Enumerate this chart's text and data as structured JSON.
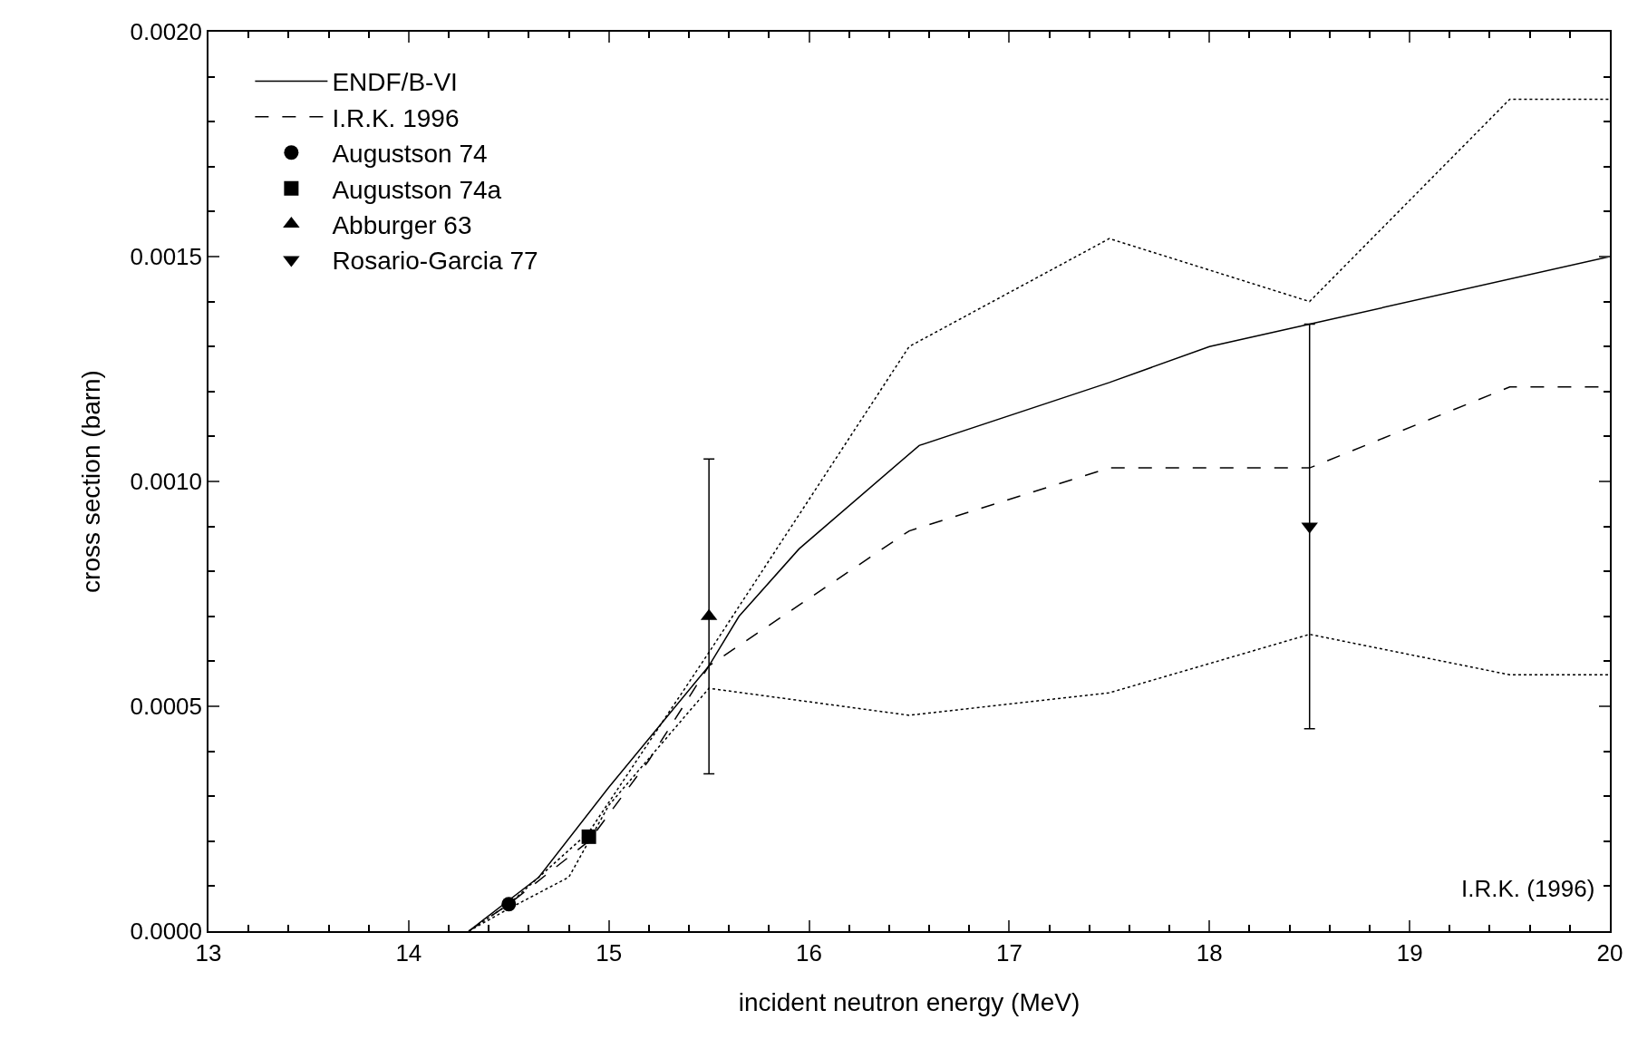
{
  "chart_data": {
    "type": "line",
    "xlabel": "incident neutron energy (MeV)",
    "ylabel": "cross section (barn)",
    "xlim": [
      13,
      20
    ],
    "xticks": [
      13,
      14,
      15,
      16,
      17,
      18,
      19,
      20
    ],
    "ylim": [
      0,
      0.002
    ],
    "yticks": [
      {
        "value": 0,
        "label": "0.0000"
      },
      {
        "value": 0.0005,
        "label": "0.0005"
      },
      {
        "value": 0.001,
        "label": "0.0010"
      },
      {
        "value": 0.0015,
        "label": "0.0015"
      },
      {
        "value": 0.002,
        "label": "0.0020"
      }
    ],
    "grid": false,
    "legend": "top left",
    "annotations": [
      "I.R.K. (1996)"
    ],
    "series": [
      {
        "name": "ENDF/B-VI",
        "line_style": "solid",
        "marker": "none",
        "color": "#000000",
        "x": [
          14.3,
          14.65,
          15.0,
          15.5,
          15.65,
          15.95,
          16.55,
          17.5,
          18.0,
          18.5,
          20
        ],
        "values": [
          0,
          0.00012,
          0.00032,
          0.00059,
          0.0007,
          0.00085,
          0.00108,
          0.00122,
          0.0013,
          0.00135,
          0.0015
        ]
      },
      {
        "name": "I.R.K. 1996",
        "line_style": "dashed",
        "marker": "none",
        "color": "#000000",
        "x": [
          14.3,
          14.5,
          14.9,
          15.2,
          15.5,
          16.5,
          17.5,
          18.5,
          19.5,
          20
        ],
        "values": [
          0,
          6e-05,
          0.0002,
          0.00038,
          0.00059,
          0.00089,
          0.00103,
          0.00103,
          0.00121,
          0.00121
        ]
      },
      {
        "line_style": "dotted",
        "marker": "none",
        "color": "#000000",
        "x": [
          14.3,
          14.5,
          14.9,
          15.5,
          16.5,
          17.5,
          18.5,
          19.5,
          20
        ],
        "values": [
          0,
          6e-05,
          0.00022,
          0.00062,
          0.0013,
          0.00154,
          0.0014,
          0.00185,
          0.00185
        ]
      },
      {
        "line_style": "dotted",
        "marker": "none",
        "color": "#000000",
        "x": [
          14.3,
          14.5,
          14.8,
          15.0,
          15.5,
          16.5,
          17.5,
          18.5,
          19.5,
          20
        ],
        "values": [
          0,
          5e-05,
          0.00012,
          0.00028,
          0.00054,
          0.00048,
          0.00053,
          0.00066,
          0.00057,
          0.00057
        ]
      },
      {
        "name": "Augustson 74",
        "type": "scatter",
        "marker": "circle",
        "color": "#000000",
        "x": [
          14.5
        ],
        "values": [
          6e-05
        ]
      },
      {
        "name": "Augustson 74a",
        "type": "scatter",
        "marker": "square",
        "color": "#000000",
        "x": [
          14.9
        ],
        "values": [
          0.00021
        ]
      },
      {
        "name": "Abburger 63",
        "type": "scatter",
        "marker": "triangle",
        "color": "#000000",
        "x": [
          15.5
        ],
        "values": [
          0.0007
        ],
        "errors": [
          [
            0.00035,
            0.00105
          ]
        ]
      },
      {
        "name": "Rosario-Garcia 77",
        "type": "scatter",
        "marker": "triangle-down",
        "color": "#000000",
        "x": [
          18.5
        ],
        "values": [
          0.0009
        ],
        "errors": [
          [
            0.00045,
            0.00135
          ]
        ]
      }
    ]
  }
}
